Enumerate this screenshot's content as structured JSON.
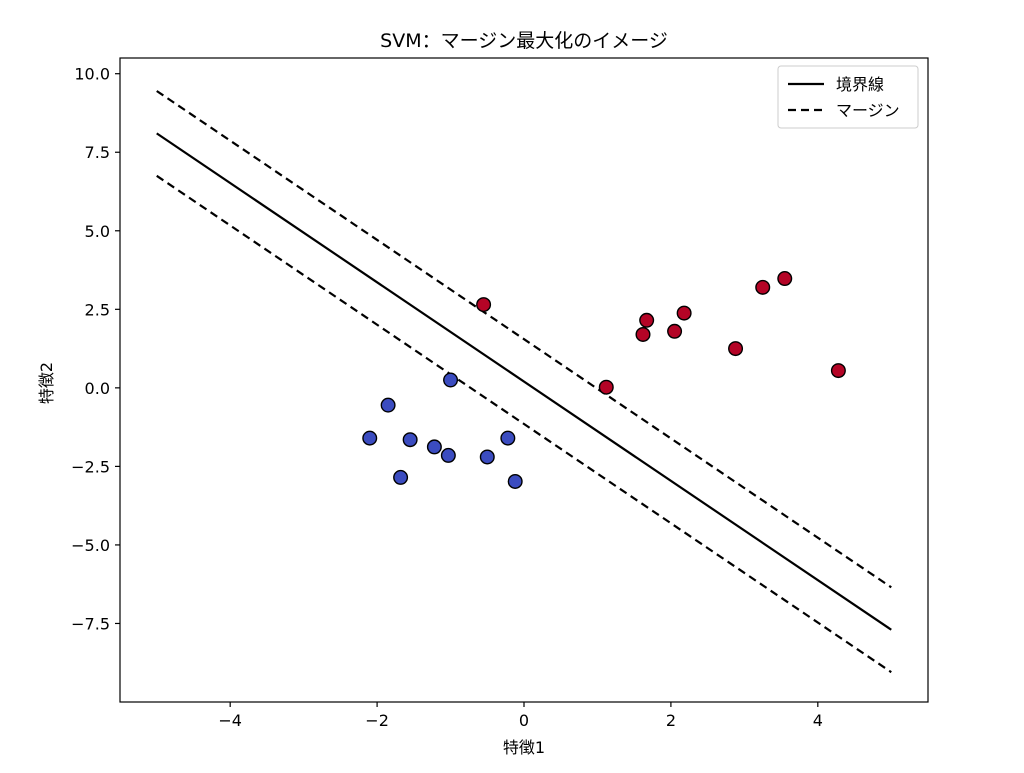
{
  "chart_data": {
    "type": "scatter",
    "title": "SVM：マージン最大化のイメージ",
    "xlabel": "特徴1",
    "ylabel": "特徴2",
    "xlim": [
      -5.5,
      5.5
    ],
    "ylim": [
      -10.0,
      10.5
    ],
    "xticks": [
      -4,
      -2,
      0,
      2,
      4
    ],
    "xtick_labels": [
      "−4",
      "−2",
      "0",
      "2",
      "4"
    ],
    "yticks": [
      10.0,
      7.5,
      5.0,
      2.5,
      0.0,
      -2.5,
      -5.0,
      -7.5
    ],
    "ytick_labels": [
      "10.0",
      "7.5",
      "5.0",
      "2.5",
      "0.0",
      "−2.5",
      "−5.0",
      "−7.5"
    ],
    "grid": false,
    "legend_position": "top-right",
    "colors": {
      "class_a": "#3b4cc0",
      "class_b": "#b40426",
      "marker_edge": "#000000",
      "line": "#000000"
    },
    "series": [
      {
        "points": [
          [
            -2.1,
            -1.6
          ],
          [
            -1.85,
            -0.55
          ],
          [
            -1.68,
            -2.85
          ],
          [
            -1.55,
            -1.65
          ],
          [
            -1.22,
            -1.88
          ],
          [
            -1.03,
            -2.15
          ],
          [
            -1.0,
            0.25
          ],
          [
            -0.5,
            -2.2
          ],
          [
            -0.22,
            -1.6
          ],
          [
            -0.12,
            -2.98
          ]
        ]
      },
      {
        "points": [
          [
            -0.55,
            2.65
          ],
          [
            1.12,
            0.02
          ],
          [
            1.62,
            1.7
          ],
          [
            1.67,
            2.15
          ],
          [
            2.05,
            1.8
          ],
          [
            2.18,
            2.38
          ],
          [
            2.88,
            1.25
          ],
          [
            3.25,
            3.2
          ],
          [
            3.55,
            3.48
          ],
          [
            4.28,
            0.55
          ]
        ]
      }
    ],
    "lines": [
      {
        "name": "境界線",
        "style": "solid",
        "x": [
          -5,
          5
        ],
        "y": [
          8.1,
          -7.7
        ]
      },
      {
        "name": "マージン",
        "style": "dashed",
        "x": [
          -5,
          5
        ],
        "y": [
          9.45,
          -6.35
        ]
      },
      {
        "style": "dashed",
        "x": [
          -5,
          5
        ],
        "y": [
          6.75,
          -9.05
        ]
      }
    ],
    "legend": [
      {
        "label": "境界線",
        "style": "solid"
      },
      {
        "label": "マージン",
        "style": "dashed"
      }
    ]
  }
}
